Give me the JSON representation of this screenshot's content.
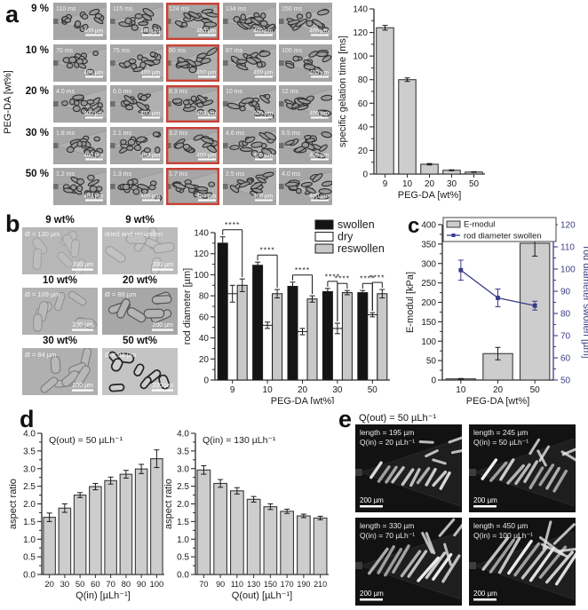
{
  "colors": {
    "axis": "#2b2b2b",
    "bar_fill": "#cdcdcd",
    "bar_stroke": "#3a3a3a",
    "highlight_red": "#c94136",
    "navy": "#3a3a8c",
    "swollen": "#141414",
    "dry": "#ffffff",
    "reswollen": "#c9c9c9"
  },
  "panel_a": {
    "label": "a",
    "row_axis_label": "PEG-DA [wt%]",
    "scale_bar_label": "400 µm",
    "rows": [
      {
        "row_label": "9 %",
        "highlight_col": 2,
        "times": [
          "110 ms",
          "115 ms",
          "124 ms",
          "134 ms",
          "150 ms"
        ]
      },
      {
        "row_label": "10 %",
        "highlight_col": 2,
        "times": [
          "70 ms",
          "75 ms",
          "80 ms",
          "87 ms",
          "100 ms"
        ]
      },
      {
        "row_label": "20 %",
        "highlight_col": 2,
        "times": [
          "4.0 ms",
          "6.0 ms",
          "8.3 ms",
          "10 ms",
          "12 ms"
        ]
      },
      {
        "row_label": "30 %",
        "highlight_col": 2,
        "times": [
          "1.8 ms",
          "2.1 ms",
          "3.2 ms",
          "4.6 ms",
          "6.5 ms"
        ]
      },
      {
        "row_label": "50 %",
        "highlight_col": 2,
        "times": [
          "1.2 ms",
          "1.3 ms",
          "1.7 ms",
          "2.5 ms",
          "4.0 ms"
        ]
      }
    ]
  },
  "panel_b": {
    "label": "b",
    "scale_bar_label": "200 µm",
    "images": [
      {
        "title": "9 wt%",
        "annotation": "Ø = 130 µm"
      },
      {
        "title": "9 wt%",
        "annotation": "dried and reswollen"
      },
      {
        "title": "10 wt%",
        "annotation": "Ø = 109 µm"
      },
      {
        "title": "20 wt%",
        "annotation": "Ø = 89 µm"
      },
      {
        "title": "30 wt%",
        "annotation": "Ø = 84 µm"
      },
      {
        "title": "50 wt%",
        "annotation": "Ø = 83 µm"
      }
    ]
  },
  "panel_c": {
    "label": "c"
  },
  "panel_d": {
    "label": "d"
  },
  "panel_e": {
    "label": "e",
    "header": "Q(out) = 50 µLh⁻¹",
    "scale_bar_label": "200 µm",
    "images": [
      {
        "length": "length = 195 µm",
        "qin": "Q(in) = 20 µLh⁻¹"
      },
      {
        "length": "length = 245 µm",
        "qin": "Q(in) = 50 µLh⁻¹"
      },
      {
        "length": "length = 330 µm",
        "qin": "Q(in) = 70 µLh⁻¹"
      },
      {
        "length": "length = 450 µm",
        "qin": "Q(in) = 100 µLh⁻¹"
      }
    ]
  },
  "chart_data": [
    {
      "id": "a-gelation-time",
      "panel": "a",
      "type": "bar",
      "title": "",
      "xlabel": "PEG-DA [wt%]",
      "ylabel": "specific gelation time [ms]",
      "categories": [
        "9",
        "10",
        "20",
        "30",
        "50"
      ],
      "values": [
        124,
        80,
        8.3,
        3.2,
        1.7
      ],
      "errors": [
        2,
        1.5,
        0.6,
        0.4,
        0.3
      ],
      "ylim": [
        0,
        140
      ],
      "ytick_step": 20,
      "grid": false,
      "legend_position": "none"
    },
    {
      "id": "b-rod-diameter",
      "panel": "b",
      "type": "bar",
      "title": "",
      "xlabel": "PEG-DA [wt%]",
      "ylabel": "rod diameter [µm]",
      "categories": [
        "9",
        "10",
        "20",
        "30",
        "50"
      ],
      "series": [
        {
          "name": "swollen",
          "color": "#141414",
          "values": [
            130,
            109,
            89,
            84,
            83
          ],
          "errors": [
            6,
            3,
            4,
            3,
            2
          ]
        },
        {
          "name": "dry",
          "color": "#ffffff",
          "values": [
            82,
            52,
            46,
            49,
            62
          ],
          "errors": [
            8,
            3,
            3,
            5,
            2
          ]
        },
        {
          "name": "reswollen",
          "color": "#c9c9c9",
          "values": [
            90,
            82,
            77,
            83,
            82
          ],
          "errors": [
            6,
            4,
            3,
            2,
            4
          ]
        }
      ],
      "brackets": [
        [
          {
            "pair": [
              0,
              2
            ],
            "label": "****"
          }
        ],
        [
          {
            "pair": [
              0,
              2
            ],
            "label": "****"
          }
        ],
        [
          {
            "pair": [
              0,
              2
            ],
            "label": "****"
          }
        ],
        [
          {
            "pair": [
              0,
              1
            ],
            "label": "****"
          },
          {
            "pair": [
              1,
              2
            ],
            "label": "****"
          }
        ],
        [
          {
            "pair": [
              0,
              1
            ],
            "label": "****"
          },
          {
            "pair": [
              1,
              2
            ],
            "label": "****"
          }
        ]
      ],
      "ylim": [
        0,
        140
      ],
      "ytick_step": 20,
      "grid": false,
      "legend_position": "top-right"
    },
    {
      "id": "c-emodul",
      "panel": "c",
      "type": "bar+line",
      "title": "",
      "xlabel": "PEG-DA [wt%]",
      "ylabel_left": "E-modul [kPa]",
      "ylabel_right": "rod diameter swollen [µm]",
      "categories": [
        "10",
        "20",
        "50"
      ],
      "bar_series": {
        "name": "E-modul",
        "values": [
          3,
          68,
          352
        ],
        "errors": [
          1,
          16,
          33
        ]
      },
      "line_series": {
        "name": "rod diameter swollen",
        "values": [
          99.5,
          87,
          83.5
        ],
        "errors": [
          4.5,
          4,
          2
        ]
      },
      "ylim_left": [
        0,
        400
      ],
      "ytick_step_left": 50,
      "ylim_right": [
        50,
        120
      ],
      "ytick_step_right": 10,
      "grid": false,
      "legend_position": "top-inside-box"
    },
    {
      "id": "d-aspect-ratio-qin",
      "panel": "d",
      "type": "bar",
      "title": "",
      "annotation": "Q(out) = 50 µLh⁻¹",
      "xlabel": "Q(in) [µLh⁻¹]",
      "ylabel": "aspect ratio",
      "categories": [
        "20",
        "30",
        "50",
        "60",
        "70",
        "80",
        "90",
        "100"
      ],
      "values": [
        1.62,
        1.88,
        2.25,
        2.49,
        2.66,
        2.84,
        2.99,
        3.28
      ],
      "errors": [
        0.12,
        0.12,
        0.07,
        0.09,
        0.1,
        0.11,
        0.13,
        0.25
      ],
      "ylim": [
        0,
        4.0
      ],
      "ytick_step": 0.5,
      "grid": false,
      "legend_position": "none"
    },
    {
      "id": "d-aspect-ratio-qout",
      "panel": "d",
      "type": "bar",
      "title": "",
      "annotation": "Q(in) = 130 µLh⁻¹",
      "xlabel": "Q(out) [µLh⁻¹]",
      "ylabel": "aspect ratio",
      "categories": [
        "70",
        "90",
        "110",
        "130",
        "150",
        "170",
        "190",
        "210"
      ],
      "values": [
        2.96,
        2.58,
        2.37,
        2.13,
        1.92,
        1.79,
        1.66,
        1.6
      ],
      "errors": [
        0.12,
        0.11,
        0.09,
        0.08,
        0.08,
        0.06,
        0.05,
        0.05
      ],
      "ylim": [
        0,
        4.0
      ],
      "ytick_step": 0.5,
      "grid": false,
      "legend_position": "none"
    }
  ]
}
